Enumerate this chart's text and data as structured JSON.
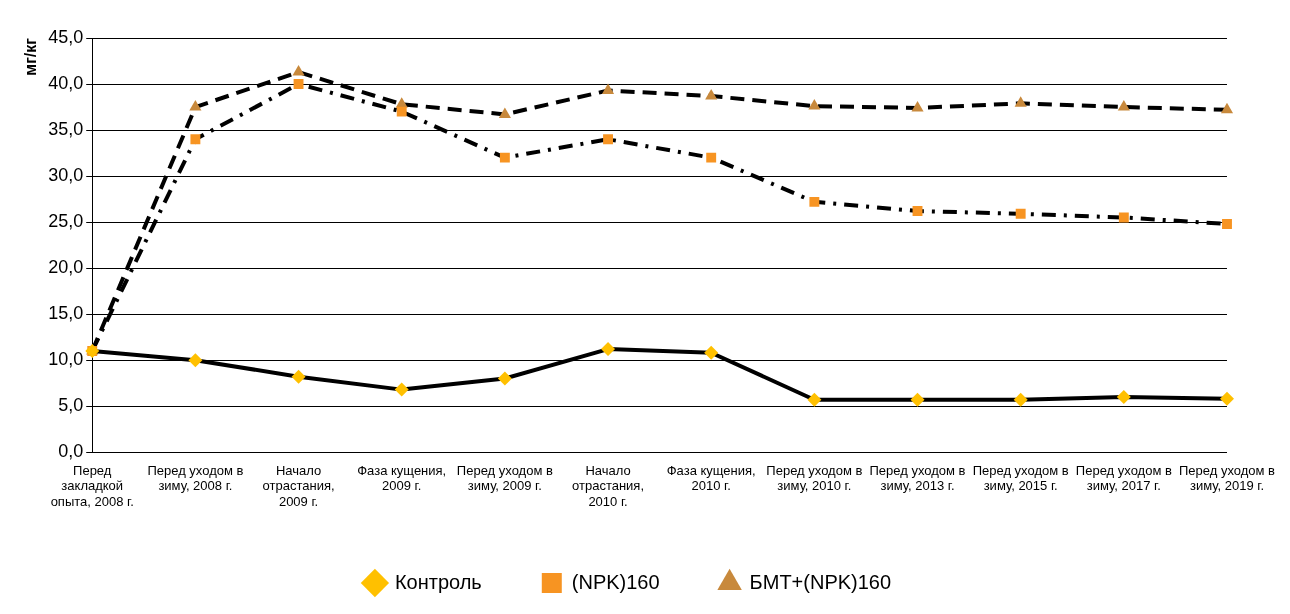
{
  "chart_data": {
    "type": "line",
    "ylabel": "мг/кг",
    "categories": [
      "Перед закладкой опыта, 2008 г.",
      "Перед уходом в зиму, 2008 г.",
      "Начало отрастания, 2009 г.",
      "Фаза кущения, 2009 г.",
      "Перед уходом в зиму, 2009 г.",
      "Начало отрастания, 2010 г.",
      "Фаза кущения, 2010 г.",
      "Перед уходом в зиму, 2010 г.",
      "Перед уходом в зиму, 2013 г.",
      "Перед уходом в зиму, 2015 г.",
      "Перед уходом в зиму, 2017 г.",
      "Перед уходом в зиму, 2019 г."
    ],
    "series": [
      {
        "name": "Контроль",
        "color": "#ffc000",
        "line_style": "solid",
        "marker": "diamond",
        "values": [
          11.0,
          10.0,
          8.2,
          6.8,
          8.0,
          11.2,
          10.8,
          5.7,
          5.7,
          5.7,
          6.0,
          5.8
        ]
      },
      {
        "name": "(NPK)160",
        "color": "#f79422",
        "line_style": "dashdot",
        "marker": "square",
        "values": [
          11.0,
          34.0,
          40.0,
          37.0,
          32.0,
          34.0,
          32.0,
          27.2,
          26.2,
          25.9,
          25.5,
          24.8
        ]
      },
      {
        "name": "БМТ+(NPK)160",
        "color": "#c8893c",
        "line_style": "dashed",
        "marker": "triangle",
        "values": [
          11.0,
          37.5,
          41.3,
          37.8,
          36.7,
          39.3,
          38.7,
          37.6,
          37.4,
          37.9,
          37.5,
          37.2
        ]
      }
    ],
    "ylim": [
      0,
      45
    ],
    "yticks": [
      {
        "value": 0,
        "label": "0,0"
      },
      {
        "value": 5,
        "label": "5,0"
      },
      {
        "value": 10,
        "label": "10,0"
      },
      {
        "value": 15,
        "label": "15,0"
      },
      {
        "value": 20,
        "label": "20,0"
      },
      {
        "value": 25,
        "label": "25,0"
      },
      {
        "value": 30,
        "label": "30,0"
      },
      {
        "value": 35,
        "label": "35,0"
      },
      {
        "value": 40,
        "label": "40,0"
      },
      {
        "value": 45,
        "label": "45,0"
      }
    ],
    "grid": "y",
    "legend": "bottom"
  }
}
